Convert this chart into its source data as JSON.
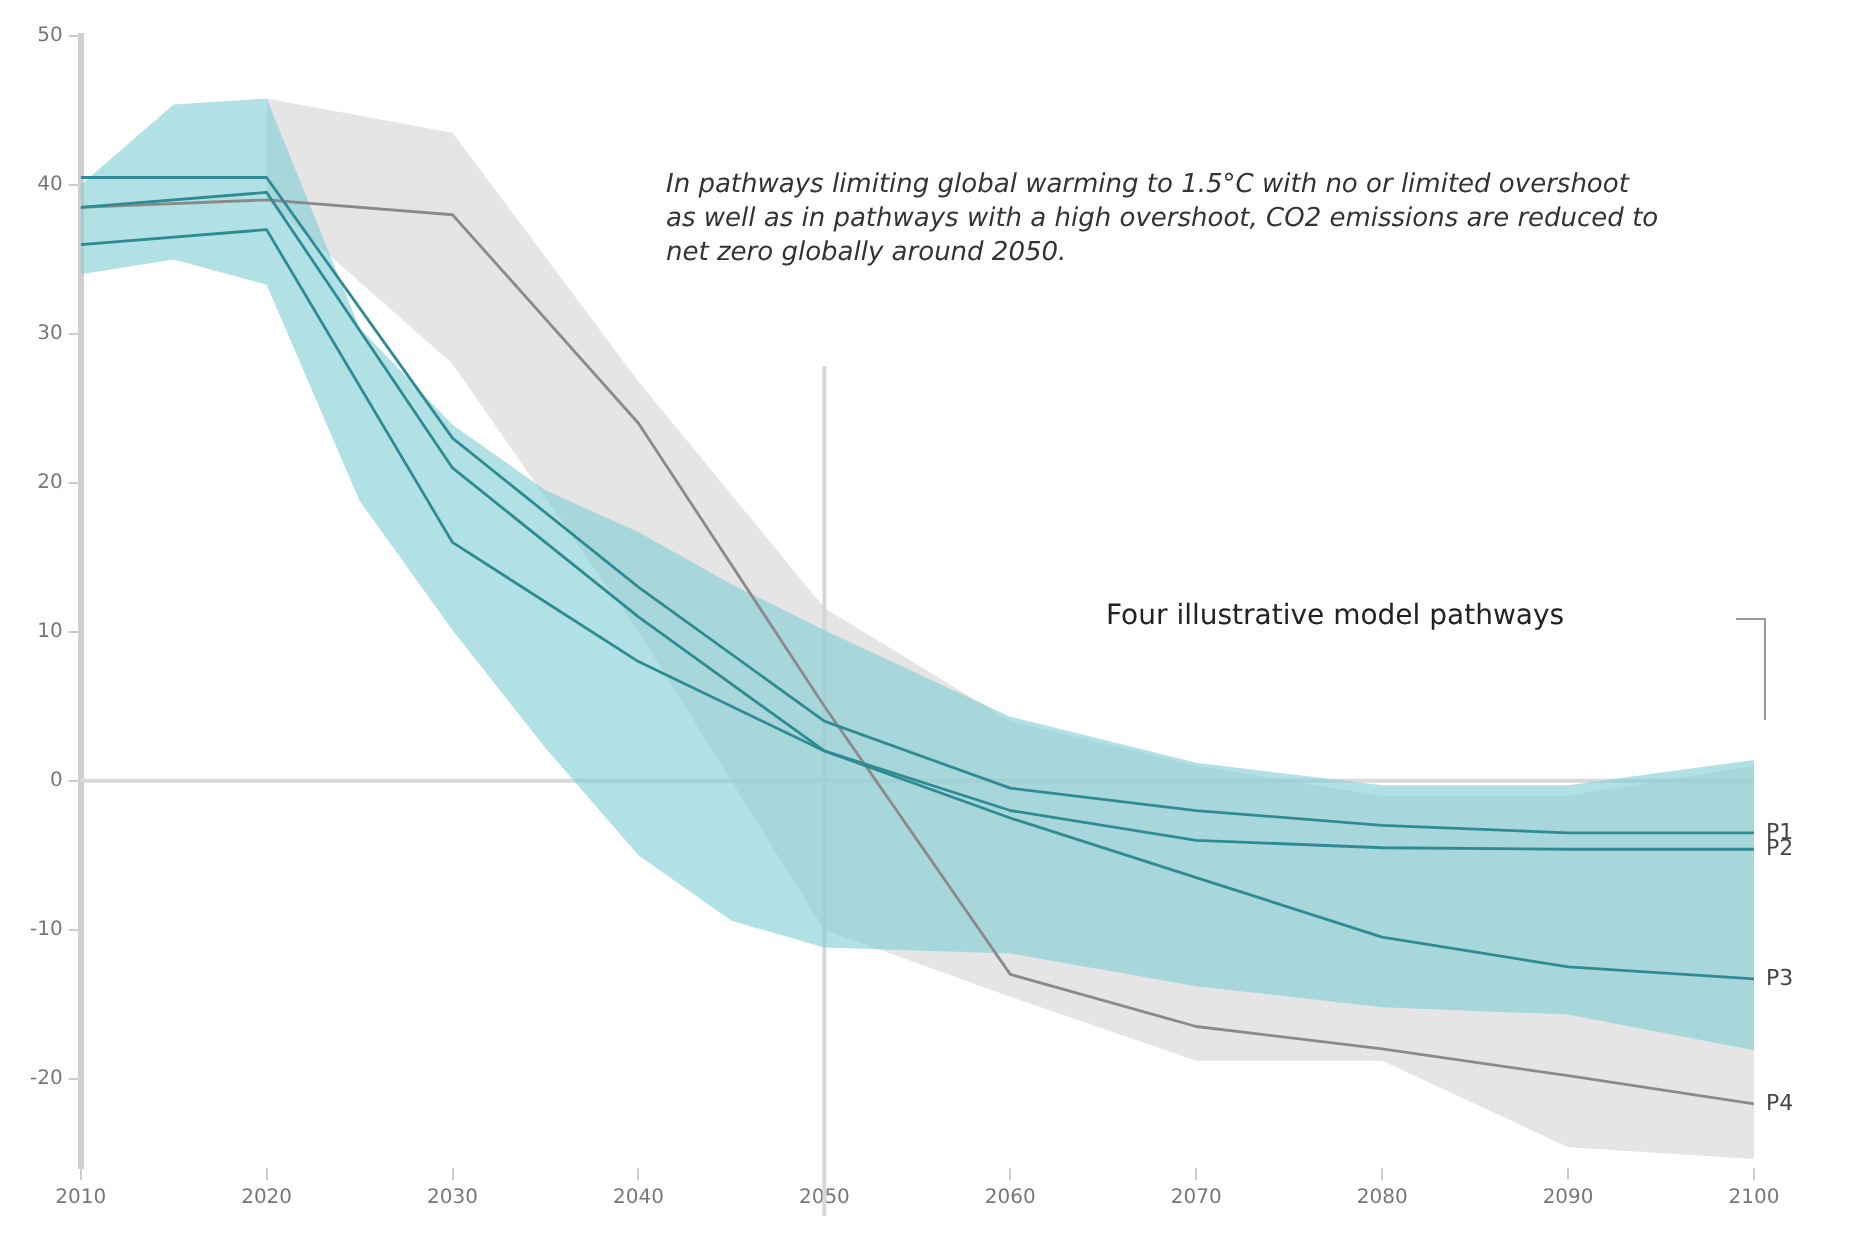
{
  "chart_data": {
    "type": "line",
    "annotations": [
      "In pathways limiting global warming to 1.5°C with no or limited overshoot as well as in pathways with a high overshoot, CO2 emissions are reduced to net zero globally around 2050.",
      "Four illustrative model pathways"
    ],
    "xlim": [
      2010,
      2100
    ],
    "xticks": [
      2010,
      2020,
      2030,
      2040,
      2050,
      2060,
      2070,
      2080,
      2090,
      2100
    ],
    "ylim": [
      -26,
      50
    ],
    "yticks": [
      -20,
      -10,
      0,
      10,
      20,
      30,
      40,
      50
    ],
    "grid": false,
    "legend": false,
    "marker": "none",
    "line_style": "solid",
    "ref_lines": [
      {
        "axis": "y",
        "value": 0,
        "color": "#d9d9d9"
      },
      {
        "axis": "x",
        "value": 2050,
        "color": "#d9d9d9"
      }
    ],
    "series": [
      {
        "type": "area",
        "color": "#d4d4d4",
        "x": [
          2020,
          2030,
          2040,
          2050,
          2060,
          2070,
          2080,
          2090,
          2100
        ],
        "values": [
          null,
          null,
          null,
          null,
          null,
          null,
          null,
          null,
          null
        ],
        "upper": [
          45.8,
          43.5,
          26.8,
          11.6,
          4,
          1,
          -1,
          -1,
          1
        ],
        "lower": [
          39,
          28,
          10,
          -10,
          -14.5,
          -18.8,
          -18.8,
          -24.6,
          -25.4
        ]
      },
      {
        "type": "area",
        "color": "#7ecdd3",
        "x": [
          2010,
          2015,
          2020,
          2025,
          2030,
          2035,
          2040,
          2045,
          2050,
          2060,
          2070,
          2080,
          2090,
          2100
        ],
        "values": [
          null,
          null,
          null,
          null,
          null,
          null,
          null,
          null,
          null,
          null,
          null,
          null,
          null,
          null
        ],
        "upper": [
          40,
          45.4,
          45.8,
          30.4,
          23.9,
          19.5,
          16.7,
          13.2,
          10.1,
          4.3,
          1.2,
          -0.3,
          -0.3,
          1.4
        ],
        "lower": [
          34,
          35,
          33.3,
          18.8,
          10.1,
          2.2,
          -5,
          -9.4,
          -11.2,
          -11.6,
          -13.8,
          -15.2,
          -15.7,
          -18.1
        ]
      },
      {
        "name": "P1",
        "color": "#2e8b94",
        "x": [
          2010,
          2020,
          2030,
          2040,
          2050,
          2060,
          2070,
          2080,
          2090,
          2100
        ],
        "values": [
          40.5,
          40.5,
          23,
          13,
          4,
          -0.5,
          -2,
          -3,
          -3.5,
          -3.5
        ]
      },
      {
        "name": "P2",
        "color": "#2e8b94",
        "x": [
          2010,
          2020,
          2030,
          2040,
          2050,
          2060,
          2070,
          2080,
          2090,
          2100
        ],
        "values": [
          38.5,
          39.5,
          21,
          11,
          2,
          -2,
          -4,
          -4.5,
          -4.6,
          -4.6
        ]
      },
      {
        "name": "P3",
        "color": "#2e8b94",
        "x": [
          2010,
          2020,
          2030,
          2040,
          2050,
          2060,
          2070,
          2080,
          2090,
          2100
        ],
        "values": [
          36,
          37,
          16,
          8,
          2,
          -2.5,
          -6.5,
          -10.5,
          -12.5,
          -13.3
        ]
      },
      {
        "name": "P4",
        "color": "#8a8a8a",
        "x": [
          2010,
          2020,
          2030,
          2040,
          2050,
          2060,
          2070,
          2080,
          2090,
          2100
        ],
        "values": [
          38.5,
          39,
          38,
          24,
          5,
          -13,
          -16.5,
          -18,
          -19.8,
          -21.7
        ]
      }
    ]
  }
}
